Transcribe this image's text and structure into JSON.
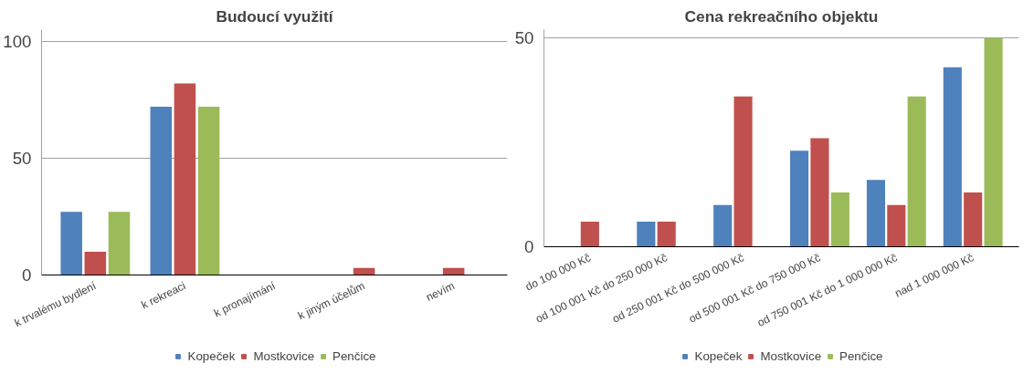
{
  "chart_data": [
    {
      "type": "bar",
      "title": "Budoucí využití",
      "categories": [
        "k trvalému bydlení",
        "k rekreaci",
        "k pronajímání",
        "k jiným účelům",
        "nevím"
      ],
      "series": [
        {
          "name": "Kopeček",
          "color": "#4f81bd",
          "values": [
            27,
            72,
            0,
            0,
            0
          ]
        },
        {
          "name": "Mostkovice",
          "color": "#c0504d",
          "values": [
            10,
            82,
            0,
            3,
            3
          ]
        },
        {
          "name": "Penčice",
          "color": "#9bbb59",
          "values": [
            27,
            72,
            0,
            0,
            0
          ]
        }
      ],
      "ylim": [
        0,
        105
      ],
      "yticks": [
        0,
        50,
        100
      ],
      "grid": "y",
      "legend": "bottom"
    },
    {
      "type": "bar",
      "title": "Cena rekreačního objektu",
      "categories": [
        "do 100 000 Kč",
        "od 100 001 Kč do 250 000 Kč",
        "od 250 001 Kč do 500 000 Kč",
        "od 500 001 Kč do 750 000 Kč",
        "od 750 001 Kč do 1 000 000 Kč",
        "nad 1 000 000 Kč"
      ],
      "series": [
        {
          "name": "Kopeček",
          "color": "#4f81bd",
          "values": [
            0,
            6,
            10,
            23,
            16,
            43
          ]
        },
        {
          "name": "Mostkovice",
          "color": "#c0504d",
          "values": [
            6,
            6,
            36,
            26,
            10,
            13
          ]
        },
        {
          "name": "Penčice",
          "color": "#9bbb59",
          "values": [
            0,
            0,
            0,
            13,
            36,
            50
          ]
        }
      ],
      "ylim": [
        0,
        52
      ],
      "yticks": [
        0,
        50
      ],
      "grid": "y",
      "legend": "bottom"
    }
  ]
}
